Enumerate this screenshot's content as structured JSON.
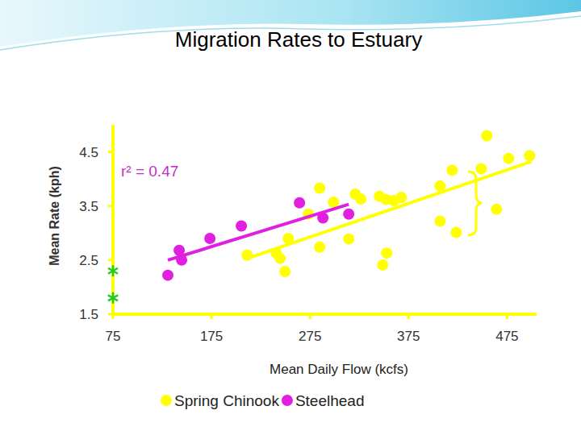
{
  "chart_data": {
    "type": "scatter",
    "title": "Migration Rates to Estuary",
    "x_label": "Mean Daily Flow (kcfs)",
    "y_label": "Mean Rate (kph)",
    "xlim": [
      75,
      505
    ],
    "ylim": [
      1.5,
      5.0
    ],
    "xticks": [
      75,
      175,
      275,
      375,
      475
    ],
    "yticks": [
      1.5,
      2.5,
      3.5,
      4.5
    ],
    "legend": "bottom",
    "annotation": "r² = 0.47",
    "series": [
      {
        "name": "Spring Chinook",
        "color": "#ffff00",
        "marker": "circle",
        "x": [
          211.1,
          240.6,
          244.7,
          249.6,
          252.9,
          273.4,
          284.8,
          284.8,
          298.8,
          314.3,
          320.9,
          326.6,
          345.5,
          348.8,
          352.1,
          352.9,
          360.2,
          367.6,
          407.0,
          407.0,
          419.3,
          423.4,
          448.8,
          454.5,
          464.3,
          476.6,
          497.9
        ],
        "values": [
          2.59,
          2.63,
          2.53,
          2.29,
          2.9,
          3.35,
          3.83,
          2.74,
          3.57,
          2.89,
          3.72,
          3.63,
          3.68,
          2.41,
          3.62,
          2.63,
          3.6,
          3.66,
          3.87,
          3.22,
          4.16,
          3.01,
          4.19,
          4.8,
          3.44,
          4.38,
          4.43
        ],
        "trend_x": [
          211.1,
          499.6
        ],
        "trend_y": [
          2.53,
          4.32
        ]
      },
      {
        "name": "Steelhead",
        "color": "#e020e0",
        "marker": "circle",
        "x": [
          130.7,
          142.2,
          144.7,
          173.4,
          205.3,
          264.3,
          288.1,
          314.3
        ],
        "values": [
          2.22,
          2.68,
          2.5,
          2.9,
          3.13,
          3.56,
          3.28,
          3.35
        ],
        "trend_x": [
          130.7,
          314.3
        ],
        "trend_y": [
          2.5,
          3.53
        ]
      }
    ],
    "reference_points": {
      "color": "#22cc22",
      "marker": "asterisk",
      "x": [
        75,
        75
      ],
      "values": [
        2.3,
        1.8
      ]
    }
  }
}
